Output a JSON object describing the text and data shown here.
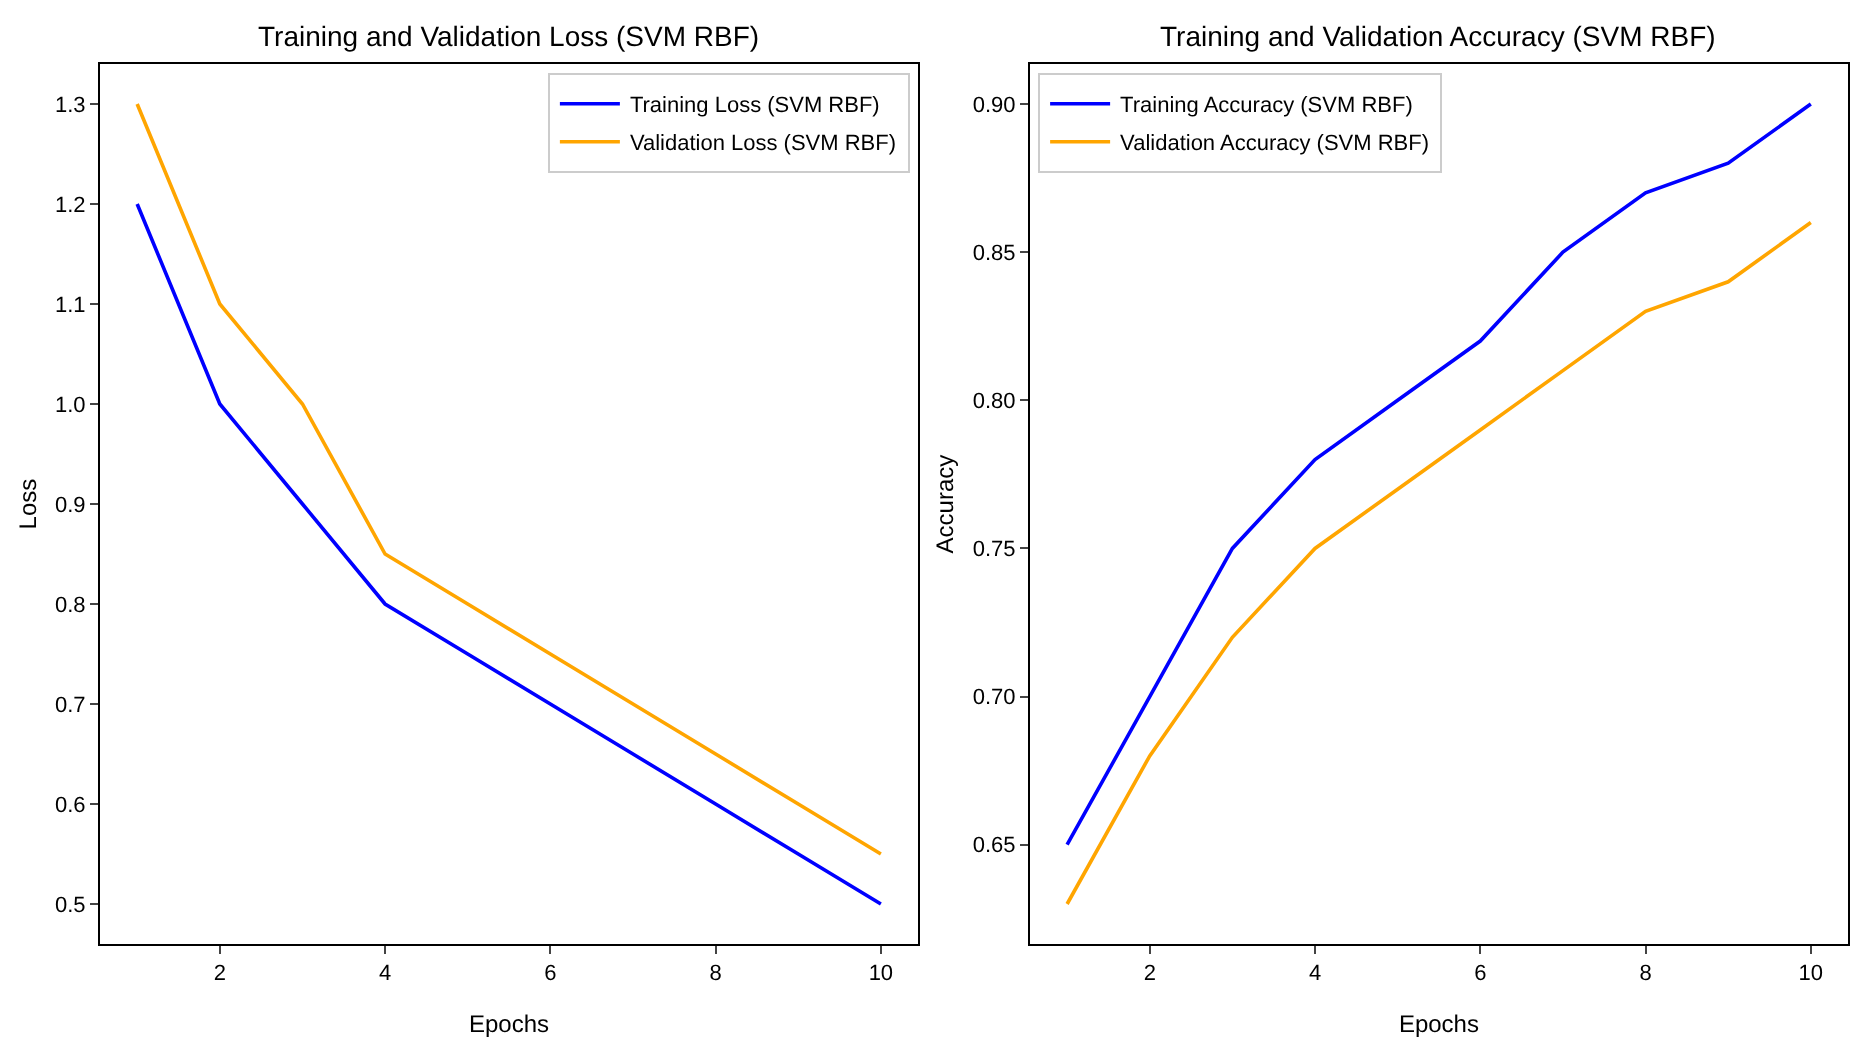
{
  "chart_data": [
    {
      "type": "line",
      "title": "Training and Validation Loss (SVM RBF)",
      "xlabel": "Epochs",
      "ylabel": "Loss",
      "x": [
        1,
        2,
        3,
        4,
        5,
        6,
        7,
        8,
        9,
        10
      ],
      "series": [
        {
          "name": "Training Loss (SVM RBF)",
          "color": "#0000ff",
          "values": [
            1.2,
            1.0,
            0.9,
            0.8,
            0.75,
            0.7,
            0.65,
            0.6,
            0.55,
            0.5
          ]
        },
        {
          "name": "Validation Loss (SVM RBF)",
          "color": "#ffa500",
          "values": [
            1.3,
            1.1,
            1.0,
            0.85,
            0.8,
            0.75,
            0.7,
            0.65,
            0.6,
            0.55
          ]
        }
      ],
      "xlim": [
        0.55,
        10.45
      ],
      "xticks": [
        2,
        4,
        6,
        8,
        10
      ],
      "ylim": [
        0.46,
        1.34
      ],
      "yticks": [
        {
          "value": 0.5,
          "label": "0.5"
        },
        {
          "value": 0.6,
          "label": "0.6"
        },
        {
          "value": 0.7,
          "label": "0.7"
        },
        {
          "value": 0.8,
          "label": "0.8"
        },
        {
          "value": 0.9,
          "label": "0.9"
        },
        {
          "value": 1.0,
          "label": "1.0"
        },
        {
          "value": 1.1,
          "label": "1.1"
        },
        {
          "value": 1.2,
          "label": "1.2"
        },
        {
          "value": 1.3,
          "label": "1.3"
        }
      ],
      "legend": "top right",
      "marker": "none",
      "line_style": "solid"
    },
    {
      "type": "line",
      "title": "Training and Validation Accuracy (SVM RBF)",
      "xlabel": "Epochs",
      "ylabel": "Accuracy",
      "x": [
        1,
        2,
        3,
        4,
        5,
        6,
        7,
        8,
        9,
        10
      ],
      "series": [
        {
          "name": "Training Accuracy (SVM RBF)",
          "color": "#0000ff",
          "values": [
            0.65,
            0.7,
            0.75,
            0.78,
            0.8,
            0.82,
            0.85,
            0.87,
            0.88,
            0.9
          ]
        },
        {
          "name": "Validation Accuracy (SVM RBF)",
          "color": "#ffa500",
          "values": [
            0.63,
            0.68,
            0.72,
            0.75,
            0.77,
            0.79,
            0.81,
            0.83,
            0.84,
            0.86
          ]
        }
      ],
      "xlim": [
        0.55,
        10.45
      ],
      "xticks": [
        2,
        4,
        6,
        8,
        10
      ],
      "ylim": [
        0.6165,
        0.9135
      ],
      "yticks": [
        {
          "value": 0.65,
          "label": "0.65"
        },
        {
          "value": 0.7,
          "label": "0.70"
        },
        {
          "value": 0.75,
          "label": "0.75"
        },
        {
          "value": 0.8,
          "label": "0.80"
        },
        {
          "value": 0.85,
          "label": "0.85"
        },
        {
          "value": 0.9,
          "label": "0.90"
        }
      ],
      "legend": "top left",
      "marker": "none",
      "line_style": "solid"
    }
  ]
}
